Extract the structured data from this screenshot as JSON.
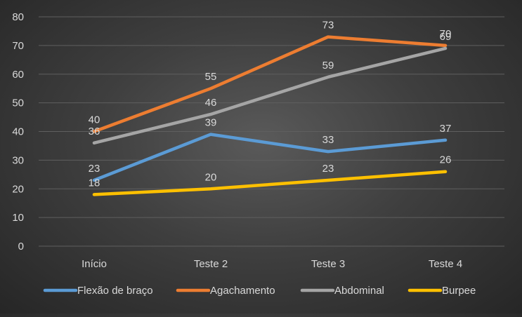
{
  "chart_data": {
    "type": "line",
    "categories": [
      "Início",
      "Teste 2",
      "Teste 3",
      "Teste 4"
    ],
    "ylim": [
      0,
      80
    ],
    "yticks": [
      0,
      10,
      20,
      30,
      40,
      50,
      60,
      70,
      80
    ],
    "grid": true,
    "legend_position": "bottom",
    "data_labels": true,
    "series": [
      {
        "name": "Flexão de braço",
        "values": [
          23,
          39,
          33,
          37
        ],
        "color": "#5b9bd5"
      },
      {
        "name": "Agachamento",
        "values": [
          40,
          55,
          73,
          70
        ],
        "color": "#ed7d31"
      },
      {
        "name": "Abdominal",
        "values": [
          36,
          46,
          59,
          69
        ],
        "color": "#a5a5a5"
      },
      {
        "name": "Burpee",
        "values": [
          18,
          20,
          23,
          26
        ],
        "color": "#ffc000"
      }
    ],
    "colors": {
      "background": "#404040",
      "gridline": "#5f5f5f",
      "axis_text": "#d9d9d9",
      "label_text": "#d9d9d9"
    }
  }
}
